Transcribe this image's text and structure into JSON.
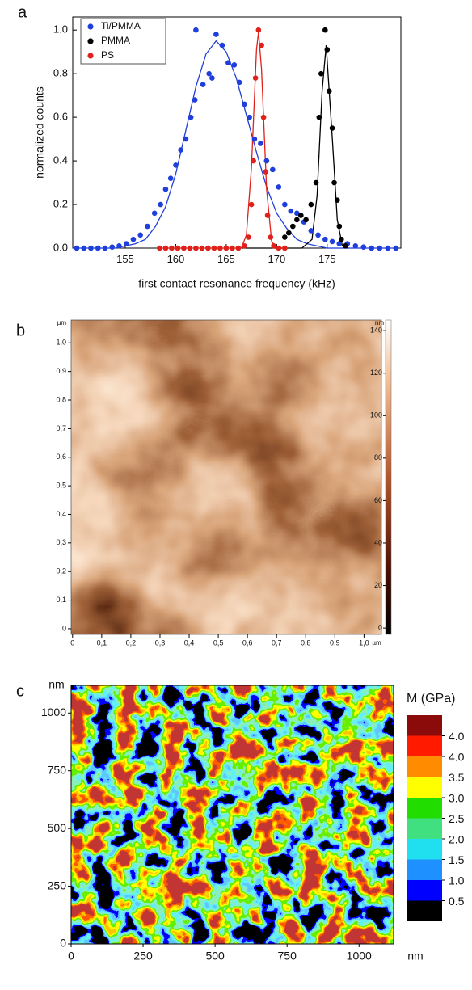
{
  "chart_data": [
    {
      "type": "scatter",
      "panel_label": "a",
      "xlabel": "first contact resonance frequency  (kHz)",
      "ylabel": "normalized counts",
      "xlim": [
        149.8,
        182.3
      ],
      "ylim": [
        0,
        1.06
      ],
      "xticks": [
        155,
        160,
        165,
        170,
        175
      ],
      "yticks": [
        {
          "value": 0,
          "label": "0.0"
        },
        0.2,
        0.4,
        0.6,
        0.8,
        {
          "value": 1,
          "label": "1.0"
        }
      ],
      "legend": "upper left",
      "series": [
        {
          "name": "Ti/PMMA",
          "color": "#1f3fdc",
          "x": [
            150.2,
            150.9,
            151.6,
            152.3,
            153,
            153.7,
            154.4,
            155.1,
            155.8,
            156.5,
            157.2,
            157.9,
            158.5,
            159,
            159.5,
            160,
            160.5,
            161,
            161.5,
            161.9,
            162.0,
            162.7,
            163.3,
            163.6,
            164.0,
            164.6,
            165.2,
            165.8,
            166.3,
            166.8,
            167.3,
            167.8,
            168.4,
            169,
            169.6,
            170.2,
            170.8,
            171.4,
            172,
            172.7,
            173.4,
            174.1,
            174.8,
            175.5,
            176.2,
            177,
            177.8,
            178.6,
            179.4,
            180.2,
            181,
            181.8
          ],
          "values": [
            0,
            0,
            0,
            0,
            0,
            0.005,
            0.01,
            0.02,
            0.04,
            0.06,
            0.1,
            0.16,
            0.2,
            0.27,
            0.32,
            0.38,
            0.45,
            0.5,
            0.6,
            0.68,
            1.0,
            0.75,
            0.8,
            0.78,
            0.98,
            0.93,
            0.85,
            0.84,
            0.76,
            0.66,
            0.6,
            0.5,
            0.48,
            0.4,
            0.36,
            0.28,
            0.2,
            0.17,
            0.16,
            0.12,
            0.08,
            0.06,
            0.04,
            0.03,
            0.02,
            0.02,
            0.01,
            0.005,
            0,
            0,
            0,
            0
          ],
          "fit": {
            "x": [
              150,
              154,
              156,
              157,
              158,
              159,
              160,
              161,
              162,
              163,
              164,
              165,
              166,
              167,
              168,
              169,
              170,
              171,
              172,
              173,
              175,
              182
            ],
            "values": [
              0,
              0,
              0.02,
              0.04,
              0.1,
              0.19,
              0.34,
              0.54,
              0.74,
              0.89,
              0.95,
              0.9,
              0.78,
              0.61,
              0.44,
              0.28,
              0.16,
              0.09,
              0.04,
              0.02,
              0,
              0
            ]
          }
        },
        {
          "name": "PMMA",
          "color": "#000000",
          "x": [
            170.8,
            171.2,
            171.6,
            172,
            172.4,
            172.9,
            173.4,
            173.9,
            174.2,
            174.4,
            174.8,
            175,
            175.2,
            175.5,
            175.7,
            176,
            176.2,
            176.4,
            176.8
          ],
          "values": [
            0.05,
            0.07,
            0.1,
            0.13,
            0.15,
            0.13,
            0.2,
            0.3,
            0.6,
            0.8,
            1.0,
            0.91,
            0.72,
            0.55,
            0.3,
            0.22,
            0.1,
            0.04,
            0.01
          ],
          "fit": {
            "x": [
              166.6,
              172.5,
              173.5,
              174,
              174.5,
              174.9,
              175.5,
              176,
              176.5,
              177
            ],
            "values": [
              0,
              0,
              0.04,
              0.24,
              0.72,
              0.93,
              0.51,
              0.13,
              0.01,
              0
            ]
          }
        },
        {
          "name": "PS",
          "color": "#e0201a",
          "x": [
            158.4,
            159,
            159.6,
            160.2,
            160.8,
            161.4,
            162,
            162.6,
            163.2,
            163.8,
            164.4,
            165,
            165.6,
            166.2,
            166.8,
            167.2,
            167.5,
            167.7,
            167.9,
            168.2,
            168.5,
            168.7,
            168.9,
            169.1,
            169.4,
            169.7,
            170.2,
            170.8
          ],
          "values": [
            0,
            0,
            0,
            0,
            0,
            0,
            0,
            0,
            0,
            0,
            0,
            0,
            0,
            0,
            0.01,
            0.05,
            0.2,
            0.4,
            0.78,
            1.0,
            0.93,
            0.6,
            0.35,
            0.15,
            0.05,
            0.01,
            0,
            0
          ],
          "fit": {
            "x": [
              158.4,
              166.5,
              167,
              167.5,
              168,
              168.2,
              168.5,
              169,
              169.5,
              170
            ],
            "values": [
              0,
              0,
              0.06,
              0.37,
              0.91,
              0.99,
              0.82,
              0.27,
              0.03,
              0
            ]
          }
        }
      ]
    },
    {
      "type": "heatmap",
      "panel_label": "b",
      "x_unit": "µm",
      "y_unit": "µm",
      "xlim": [
        -0.005,
        1.06
      ],
      "ylim": [
        -0.02,
        1.08
      ],
      "xticks": [
        0,
        {
          "value": 0.1,
          "label": "0,1"
        },
        {
          "value": 0.2,
          "label": "0,2"
        },
        {
          "value": 0.3,
          "label": "0,3"
        },
        {
          "value": 0.4,
          "label": "0,4"
        },
        {
          "value": 0.5,
          "label": "0,5"
        },
        {
          "value": 0.6,
          "label": "0,6"
        },
        {
          "value": 0.7,
          "label": "0,7"
        },
        {
          "value": 0.8,
          "label": "0,8"
        },
        {
          "value": 0.9,
          "label": "0,9"
        },
        {
          "value": 1,
          "label": "1,0"
        }
      ],
      "yticks": [
        0,
        {
          "value": 0.1,
          "label": "0,1"
        },
        {
          "value": 0.2,
          "label": "0,2"
        },
        {
          "value": 0.3,
          "label": "0,3"
        },
        {
          "value": 0.4,
          "label": "0,4"
        },
        {
          "value": 0.5,
          "label": "0,5"
        },
        {
          "value": 0.6,
          "label": "0,6"
        },
        {
          "value": 0.7,
          "label": "0,7"
        },
        {
          "value": 0.8,
          "label": "0,8"
        },
        {
          "value": 0.9,
          "label": "0,9"
        },
        {
          "value": 1,
          "label": "1,0"
        }
      ],
      "colorbar": {
        "unit": "nm",
        "lim": [
          -3,
          145
        ],
        "ticks": [
          0,
          20,
          40,
          60,
          80,
          100,
          120,
          140
        ]
      }
    },
    {
      "type": "contour",
      "panel_label": "c",
      "x_unit": "nm",
      "y_unit": "nm",
      "xlim": [
        0,
        1120
      ],
      "ylim": [
        0,
        1120
      ],
      "xticks": [
        0,
        250,
        500,
        750,
        1000
      ],
      "yticks": [
        0,
        250,
        500,
        750,
        1000
      ],
      "legend_title": "M (GPa)",
      "levels": [
        4,
        4,
        3.5,
        3,
        2.5,
        2,
        1.5,
        1,
        0.5
      ],
      "level_labels": [
        "4.0",
        "4.0",
        "3.5",
        "3.0",
        "2.5",
        "2.0",
        "1.5",
        "1.0",
        "0.5"
      ],
      "level_colors": [
        "#8b0a0a",
        "#ff1a00",
        "#ff8c00",
        "#ffff00",
        "#22dd00",
        "#40e080",
        "#20e0f0",
        "#1e90ff",
        "#0000ff",
        "#000000"
      ]
    }
  ]
}
